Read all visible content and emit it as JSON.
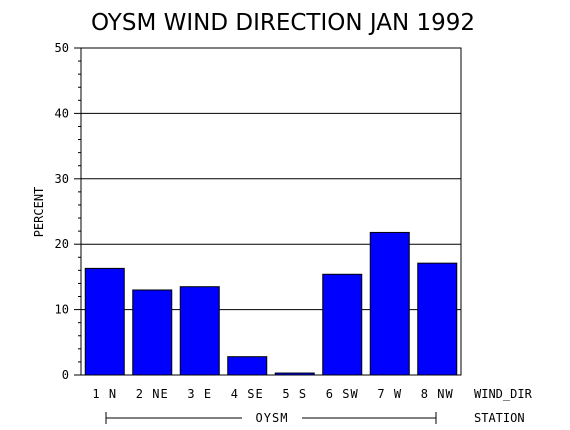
{
  "chart_data": {
    "type": "bar",
    "title": "OYSM WIND DIRECTION JAN 1992",
    "ylabel": "PERCENT",
    "xlabel": "WIND_DIR",
    "group_axis_label": "STATION",
    "group": "OYSM",
    "categories": [
      "1 N",
      "2 NE",
      "3 E",
      "4 SE",
      "5 S",
      "6 SW",
      "7 W",
      "8 NW"
    ],
    "values": [
      16.3,
      13.0,
      13.5,
      2.8,
      0.3,
      15.4,
      21.8,
      17.1
    ],
    "ylim": [
      0,
      50
    ],
    "yticks": [
      "0",
      "10",
      "20",
      "30",
      "40",
      "50"
    ],
    "grid": "horizontal",
    "bar_color": "#0000ff"
  }
}
